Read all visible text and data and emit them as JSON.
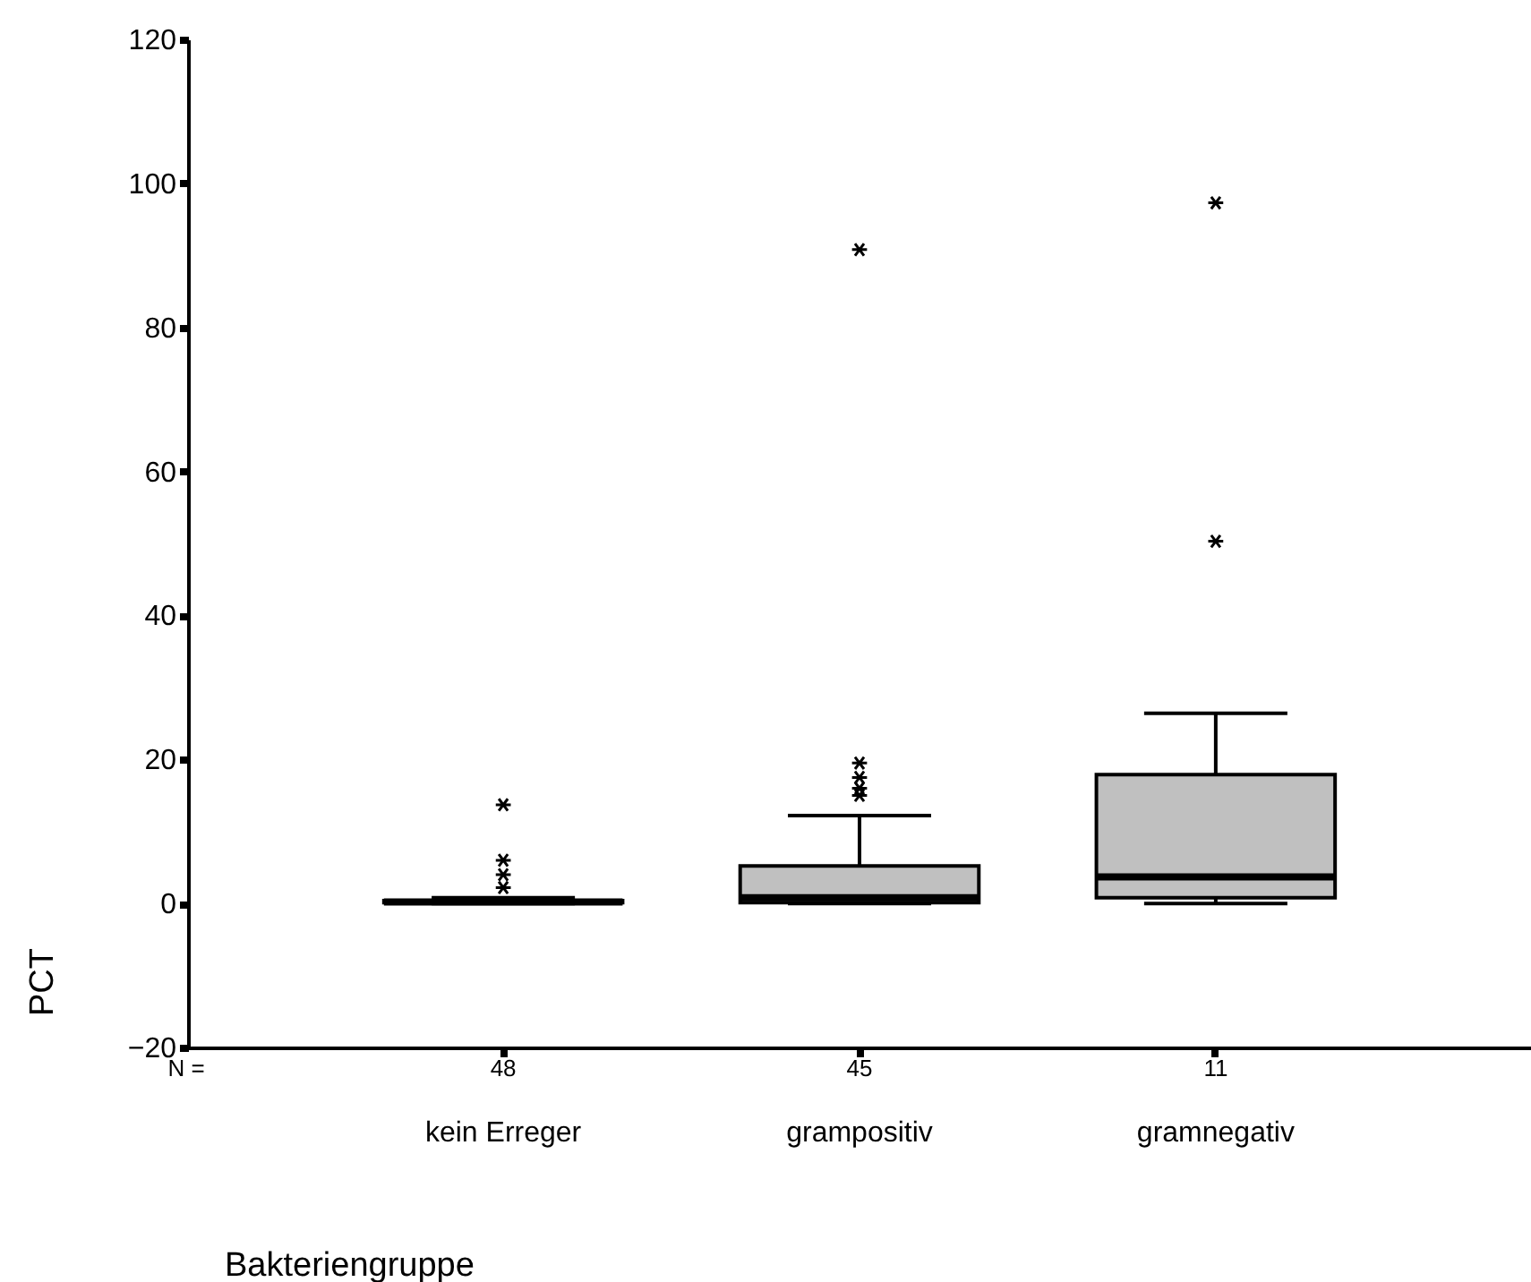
{
  "chart_data": {
    "type": "box",
    "xlabel": "Bakteriengruppe",
    "ylabel": "PCT",
    "categories": [
      "kein Erreger",
      "grampositiv",
      "gramnegativ"
    ],
    "boxes": [
      {
        "low": 0,
        "q1": 0.1,
        "median": 0.2,
        "q3": 0.4,
        "high": 0.8,
        "outliers": [
          13.7,
          6,
          4,
          2.2
        ]
      },
      {
        "low": 0,
        "q1": 0.1,
        "median": 0.8,
        "q3": 5.2,
        "high": 12.2,
        "outliers": [
          90.8,
          19.5,
          17.5,
          16,
          15
        ]
      },
      {
        "low": 0,
        "q1": 0.8,
        "median": 3.7,
        "q3": 17.9,
        "high": 26.4,
        "outliers": [
          97.3,
          50.3
        ]
      }
    ],
    "color": "#c0c0c0",
    "marker": "cross",
    "grid": false,
    "ylim": [
      -20,
      120
    ],
    "yticks": [
      -20,
      0,
      20,
      40,
      60,
      80,
      100,
      120
    ],
    "annotations": [
      "N =",
      "48",
      "45",
      "11"
    ]
  }
}
